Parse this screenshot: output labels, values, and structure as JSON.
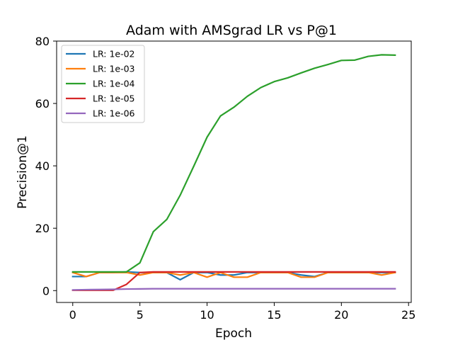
{
  "chart_data": {
    "type": "line",
    "title": "Adam with AMSgrad LR vs P@1",
    "xlabel": "Epoch",
    "ylabel": "Precision@1",
    "xlim": [
      -1.2,
      25.2
    ],
    "ylim": [
      -3.8,
      80
    ],
    "xticks": [
      0,
      5,
      10,
      15,
      20,
      25
    ],
    "yticks": [
      0,
      20,
      40,
      60,
      80
    ],
    "grid": false,
    "legend_position": "upper-left",
    "x": [
      0,
      1,
      2,
      3,
      4,
      5,
      6,
      7,
      8,
      9,
      10,
      11,
      12,
      13,
      14,
      15,
      16,
      17,
      18,
      19,
      20,
      21,
      22,
      23,
      24
    ],
    "series": [
      {
        "name": "LR: 1e-02",
        "color": "#1f77b4",
        "values": [
          4.5,
          4.5,
          5.8,
          5.8,
          6.0,
          5.8,
          5.8,
          5.8,
          3.5,
          5.8,
          5.8,
          5.0,
          5.0,
          5.8,
          5.8,
          5.8,
          5.8,
          5.0,
          4.5,
          5.8,
          5.8,
          5.8,
          5.8,
          5.8,
          5.8
        ]
      },
      {
        "name": "LR: 1e-03",
        "color": "#ff7f0e",
        "values": [
          5.8,
          4.5,
          5.8,
          5.8,
          5.8,
          5.0,
          5.8,
          5.8,
          5.0,
          5.8,
          4.3,
          5.8,
          4.3,
          4.3,
          5.8,
          5.8,
          5.8,
          4.3,
          4.3,
          5.8,
          5.8,
          5.8,
          5.8,
          5.0,
          5.8
        ]
      },
      {
        "name": "LR: 1e-04",
        "color": "#2ca02c",
        "values": [
          6.0,
          6.0,
          6.0,
          6.0,
          6.0,
          8.9,
          18.9,
          22.8,
          30.6,
          39.8,
          49.2,
          56.0,
          58.8,
          62.3,
          65.1,
          67.0,
          68.2,
          69.8,
          71.3,
          72.5,
          73.8,
          73.9,
          75.1,
          75.6,
          75.5
        ]
      },
      {
        "name": "LR: 1e-05",
        "color": "#d62728",
        "values": [
          0.1,
          0.1,
          0.1,
          0.1,
          2.0,
          5.8,
          6.0,
          6.0,
          6.0,
          6.0,
          6.0,
          6.0,
          6.0,
          6.0,
          6.0,
          6.0,
          6.0,
          6.0,
          6.0,
          6.0,
          6.0,
          6.0,
          6.0,
          6.0,
          6.0
        ]
      },
      {
        "name": "LR: 1e-06",
        "color": "#9467bd",
        "values": [
          0.2,
          0.3,
          0.35,
          0.4,
          0.5,
          0.55,
          0.6,
          0.6,
          0.6,
          0.6,
          0.6,
          0.6,
          0.6,
          0.6,
          0.6,
          0.6,
          0.6,
          0.6,
          0.6,
          0.6,
          0.6,
          0.6,
          0.6,
          0.6,
          0.6
        ]
      }
    ]
  }
}
